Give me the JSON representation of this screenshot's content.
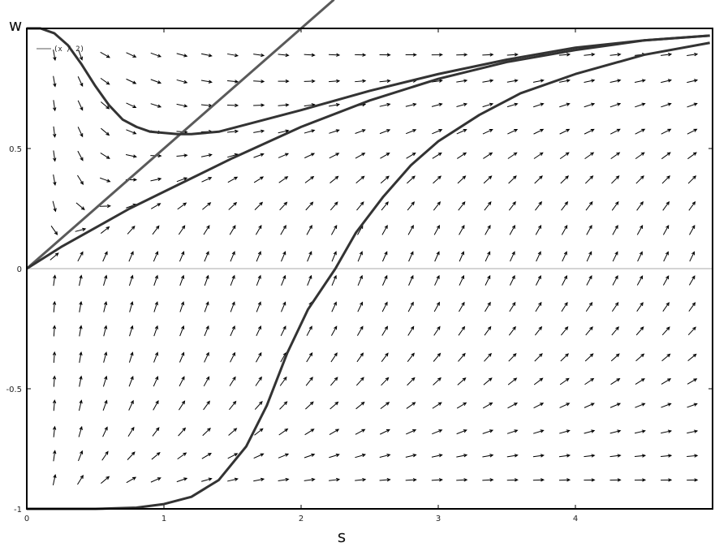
{
  "chart_data": {
    "type": "direction_field",
    "xlabel": "s",
    "ylabel": "w",
    "xlim": [
      0,
      5
    ],
    "ylim": [
      -1,
      1
    ],
    "xticks": [
      0,
      1,
      2,
      3,
      4
    ],
    "yticks": [
      -1,
      -0.5,
      0,
      0.5
    ],
    "zero_line": true,
    "legend": "top-left",
    "arrow_color": "#000000",
    "series": [
      {
        "name": "(x / 2)",
        "color": "#5a5a5a",
        "x": [
          0,
          2.24
        ],
        "values": [
          0,
          1.12
        ]
      },
      {
        "color": "#333333",
        "x": [
          0,
          0.1,
          0.2,
          0.3,
          0.4,
          0.5,
          0.6,
          0.7,
          0.8,
          0.9,
          1,
          1.1,
          1.2,
          1.4,
          1.6,
          1.8,
          2,
          2.5,
          3,
          3.5,
          4,
          4.5,
          4.98
        ],
        "values": [
          1,
          1,
          0.98,
          0.93,
          0.85,
          0.76,
          0.68,
          0.62,
          0.59,
          0.57,
          0.565,
          0.56,
          0.56,
          0.57,
          0.6,
          0.63,
          0.66,
          0.74,
          0.81,
          0.87,
          0.92,
          0.95,
          0.97
        ]
      },
      {
        "color": "#333333",
        "x": [
          0,
          0.25,
          0.5,
          0.75,
          1,
          1.5,
          2,
          2.5,
          3,
          3.5,
          4,
          4.5,
          4.98
        ],
        "values": [
          0,
          0.09,
          0.17,
          0.25,
          0.32,
          0.46,
          0.59,
          0.7,
          0.79,
          0.86,
          0.91,
          0.95,
          0.97
        ]
      },
      {
        "color": "#333333",
        "x": [
          0,
          0.5,
          0.8,
          1,
          1.2,
          1.4,
          1.6,
          1.75,
          1.9,
          2.05,
          2.25,
          2.4,
          2.6,
          2.8,
          3,
          3.3,
          3.6,
          4,
          4.5,
          4.98
        ],
        "values": [
          -1,
          -1,
          -0.995,
          -0.98,
          -0.95,
          -0.88,
          -0.74,
          -0.57,
          -0.35,
          -0.17,
          0,
          0.15,
          0.3,
          0.43,
          0.53,
          0.64,
          0.73,
          0.81,
          0.89,
          0.94
        ]
      }
    ],
    "arrows": {
      "s": [
        0.2,
        0.39,
        0.57,
        0.76,
        0.94,
        1.13,
        1.31,
        1.5,
        1.69,
        1.87,
        2.06,
        2.24,
        2.43,
        2.61,
        2.8,
        2.99,
        3.17,
        3.36,
        3.54,
        3.73,
        3.92,
        4.1,
        4.29,
        4.47,
        4.66,
        4.85
      ],
      "w": [
        0.89,
        0.78,
        0.68,
        0.57,
        0.47,
        0.37,
        0.26,
        0.16,
        0.05,
        -0.05,
        -0.16,
        -0.26,
        -0.37,
        -0.47,
        -0.57,
        -0.68,
        -0.78,
        -0.88
      ],
      "angle": [
        [
          -80,
          -70,
          -30,
          -25,
          -20,
          -15,
          -12,
          -10,
          -8,
          -6,
          -4,
          -3,
          -2,
          -1,
          0,
          1,
          2,
          3,
          4,
          5,
          5,
          6,
          6,
          7,
          7,
          8
        ],
        [
          -80,
          -65,
          -35,
          -25,
          -20,
          -15,
          -10,
          -6,
          -3,
          0,
          2,
          4,
          5,
          6,
          7,
          8,
          9,
          10,
          10,
          11,
          11,
          12,
          12,
          12,
          13,
          13
        ],
        [
          -82,
          -65,
          -40,
          -25,
          -18,
          -12,
          -6,
          -2,
          2,
          5,
          8,
          10,
          12,
          13,
          14,
          15,
          16,
          17,
          17,
          18,
          18,
          18,
          19,
          19,
          19,
          20
        ],
        [
          -83,
          -65,
          -40,
          -22,
          -12,
          -4,
          2,
          6,
          10,
          13,
          16,
          18,
          20,
          21,
          22,
          23,
          24,
          25,
          25,
          26,
          26,
          26,
          27,
          27,
          27,
          27
        ],
        [
          -82,
          -62,
          -32,
          -12,
          -2,
          6,
          12,
          16,
          20,
          23,
          25,
          27,
          29,
          30,
          31,
          32,
          33,
          33,
          34,
          34,
          35,
          35,
          35,
          35,
          36,
          36
        ],
        [
          -80,
          -58,
          -20,
          0,
          12,
          20,
          25,
          29,
          32,
          35,
          37,
          39,
          40,
          41,
          42,
          42,
          43,
          43,
          44,
          44,
          44,
          45,
          45,
          45,
          45,
          45
        ],
        [
          -75,
          -40,
          2,
          20,
          30,
          36,
          40,
          43,
          45,
          47,
          48,
          49,
          50,
          51,
          51,
          52,
          52,
          52,
          53,
          53,
          53,
          53,
          54,
          54,
          54,
          54
        ],
        [
          -55,
          15,
          38,
          48,
          53,
          56,
          58,
          59,
          60,
          60,
          61,
          61,
          61,
          61,
          61,
          61,
          61,
          61,
          61,
          61,
          61,
          61,
          61,
          61,
          61,
          61
        ],
        [
          40,
          62,
          66,
          67,
          67,
          67,
          67,
          67,
          67,
          67,
          67,
          67,
          67,
          66,
          66,
          66,
          66,
          65,
          65,
          65,
          65,
          65,
          64,
          64,
          64,
          64
        ],
        [
          82,
          78,
          74,
          72,
          71,
          70,
          70,
          69,
          69,
          68,
          68,
          67,
          67,
          66,
          66,
          65,
          65,
          64,
          64,
          63,
          63,
          62,
          62,
          61,
          61,
          60
        ],
        [
          85,
          80,
          76,
          74,
          72,
          71,
          70,
          69,
          68,
          67,
          66,
          65,
          64,
          63,
          62,
          61,
          60,
          59,
          58,
          58,
          57,
          56,
          56,
          55,
          55,
          54
        ],
        [
          86,
          80,
          76,
          73,
          71,
          69,
          68,
          66,
          65,
          64,
          62,
          61,
          60,
          59,
          58,
          56,
          55,
          54,
          53,
          52,
          51,
          50,
          50,
          49,
          48,
          47
        ],
        [
          86,
          80,
          75,
          72,
          69,
          67,
          65,
          63,
          61,
          60,
          58,
          56,
          55,
          53,
          52,
          50,
          49,
          48,
          46,
          45,
          44,
          43,
          42,
          41,
          40,
          39
        ],
        [
          86,
          79,
          73,
          69,
          66,
          63,
          61,
          58,
          56,
          54,
          52,
          50,
          48,
          46,
          45,
          43,
          41,
          40,
          38,
          37,
          35,
          34,
          33,
          32,
          31,
          30
        ],
        [
          85,
          77,
          70,
          65,
          61,
          57,
          54,
          51,
          48,
          46,
          43,
          41,
          39,
          37,
          35,
          33,
          31,
          30,
          28,
          27,
          25,
          24,
          23,
          22,
          21,
          20
        ],
        [
          84,
          74,
          65,
          58,
          53,
          48,
          44,
          41,
          38,
          35,
          32,
          30,
          28,
          26,
          24,
          22,
          21,
          19,
          18,
          17,
          16,
          15,
          14,
          13,
          12,
          12
        ],
        [
          82,
          68,
          56,
          47,
          40,
          35,
          31,
          27,
          24,
          22,
          19,
          17,
          16,
          14,
          13,
          12,
          11,
          10,
          9,
          8,
          8,
          7,
          7,
          6,
          6,
          5
        ],
        [
          78,
          58,
          40,
          30,
          24,
          19,
          16,
          13,
          11,
          9,
          8,
          7,
          6,
          5,
          4,
          4,
          3,
          3,
          2,
          2,
          2,
          1,
          1,
          1,
          1,
          1
        ]
      ]
    }
  }
}
